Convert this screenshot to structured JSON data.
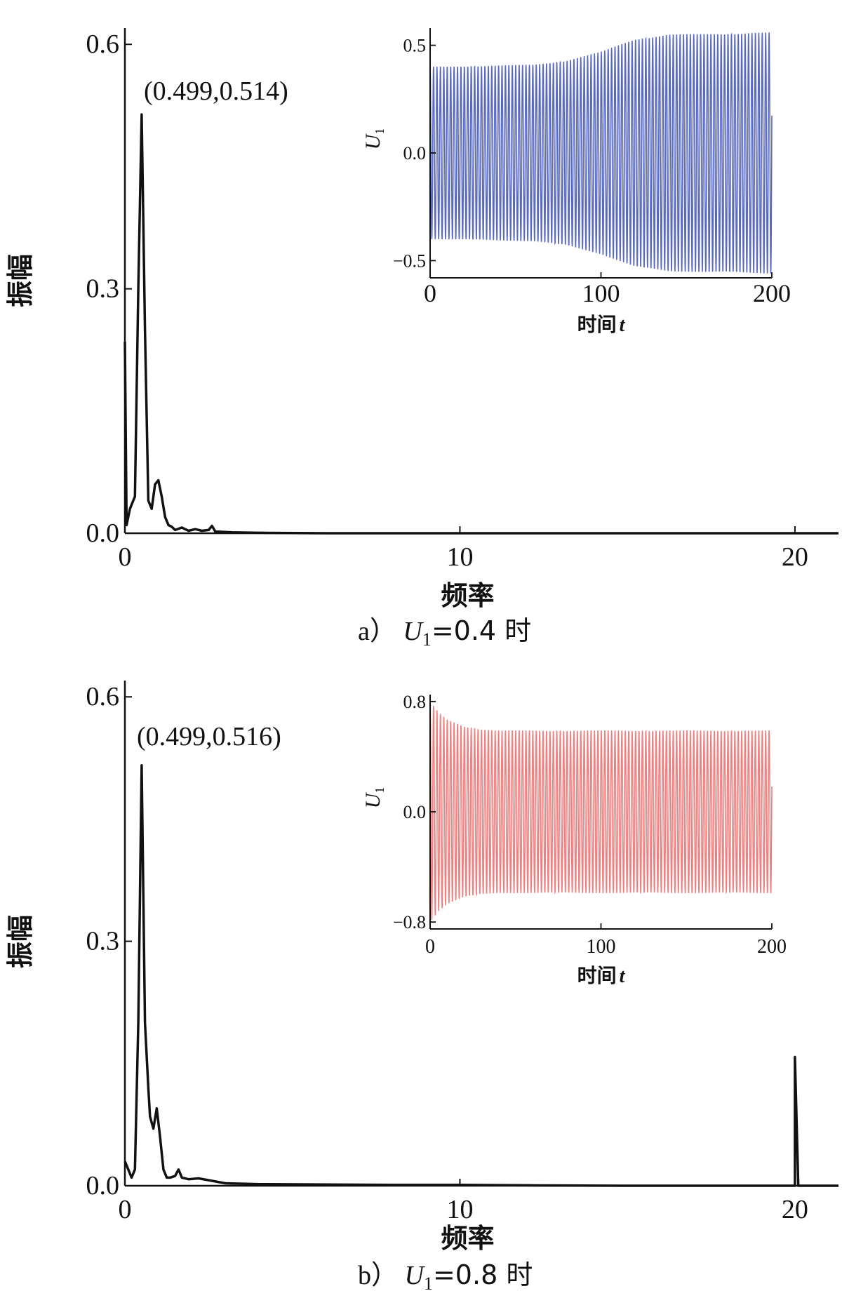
{
  "chart_data": [
    {
      "type": "line",
      "panel": "a",
      "caption": {
        "prefix": "a）",
        "var": "U",
        "sub": "1",
        "rest": "=0.4 时"
      },
      "xlabel": "频率",
      "ylabel": "振幅",
      "xlim": [
        0,
        21.3
      ],
      "ylim": [
        0,
        0.62
      ],
      "xticks": [
        "0",
        "10",
        "20"
      ],
      "yticks": [
        "0.0",
        "0.3",
        "0.6"
      ],
      "annotation": {
        "text": "(0.499,0.514)",
        "x": 0.499,
        "y": 0.514
      },
      "series": [
        {
          "color": "#111111",
          "x": [
            0,
            0.05,
            0.1,
            0.15,
            0.25,
            0.3,
            0.4,
            0.5,
            0.6,
            0.7,
            0.8,
            0.85,
            0.9,
            1.0,
            1.1,
            1.2,
            1.3,
            1.4,
            1.5,
            1.7,
            1.9,
            2.1,
            2.3,
            2.5,
            2.6,
            2.7,
            2.8,
            3.2,
            4.0,
            6.0,
            10.0,
            15.0,
            20.0,
            21.3
          ],
          "y": [
            0.235,
            0.01,
            0.02,
            0.03,
            0.04,
            0.045,
            0.3,
            0.514,
            0.25,
            0.04,
            0.03,
            0.045,
            0.06,
            0.065,
            0.045,
            0.02,
            0.01,
            0.008,
            0.004,
            0.007,
            0.003,
            0.005,
            0.003,
            0.004,
            0.009,
            0.002,
            0.002,
            0.001,
            0.0005,
            0,
            0,
            0,
            0,
            0
          ]
        }
      ],
      "inset": {
        "type": "line",
        "xlabel": "时间",
        "xlabel_var": "t",
        "ylabel": "U",
        "ylabel_sub": "1",
        "xlim": [
          0,
          200
        ],
        "ylim": [
          -0.58,
          0.58
        ],
        "xticks": [
          "0",
          "100",
          "200"
        ],
        "yticks": [
          "-0.5",
          "0.0",
          "0.5"
        ],
        "series_color": "#5a69c0",
        "envelope": {
          "t": [
            0,
            60,
            80,
            100,
            120,
            140,
            200
          ],
          "amp": [
            0.4,
            0.41,
            0.43,
            0.47,
            0.53,
            0.55,
            0.56
          ]
        },
        "frequency": 0.499
      }
    },
    {
      "type": "line",
      "panel": "b",
      "caption": {
        "prefix": "b）",
        "var": "U",
        "sub": "1",
        "rest": "=0.8 时"
      },
      "xlabel": "频率",
      "ylabel": "振幅",
      "xlim": [
        0,
        21.3
      ],
      "ylim": [
        0,
        0.62
      ],
      "xticks": [
        "0",
        "10",
        "20"
      ],
      "yticks": [
        "0.0",
        "0.3",
        "0.6"
      ],
      "annotation": {
        "text": "(0.499,0.516)",
        "x": 0.499,
        "y": 0.516
      },
      "series": [
        {
          "color": "#111111",
          "x": [
            0,
            0.1,
            0.2,
            0.3,
            0.4,
            0.5,
            0.6,
            0.7,
            0.75,
            0.85,
            0.95,
            1.05,
            1.15,
            1.25,
            1.35,
            1.5,
            1.6,
            1.7,
            1.9,
            2.2,
            2.6,
            3.0,
            4.0,
            6.0,
            8.0,
            10.0,
            12.0,
            15.0,
            19.9,
            20.0,
            20.0,
            20.1,
            21.3
          ],
          "y": [
            0.03,
            0.02,
            0.01,
            0.02,
            0.2,
            0.516,
            0.2,
            0.12,
            0.085,
            0.07,
            0.095,
            0.06,
            0.02,
            0.01,
            0.01,
            0.012,
            0.02,
            0.01,
            0.008,
            0.009,
            0.006,
            0.003,
            0.002,
            0.0015,
            0.001,
            0.001,
            0.0005,
            0,
            0,
            0,
            0.158,
            0,
            0
          ]
        }
      ],
      "inset": {
        "type": "line",
        "xlabel": "时间",
        "xlabel_var": "t",
        "ylabel": "U",
        "ylabel_sub": "1",
        "xlim": [
          0,
          200
        ],
        "ylim": [
          -0.85,
          0.85
        ],
        "xticks": [
          "0",
          "100",
          "200"
        ],
        "yticks": [
          "-0.8",
          "0.0",
          "0.8"
        ],
        "series_color": "#f08080",
        "envelope": {
          "t": [
            0,
            5,
            10,
            20,
            30,
            40,
            200
          ],
          "amp": [
            0.8,
            0.72,
            0.67,
            0.62,
            0.6,
            0.59,
            0.59
          ]
        },
        "frequency": 0.499
      }
    }
  ]
}
